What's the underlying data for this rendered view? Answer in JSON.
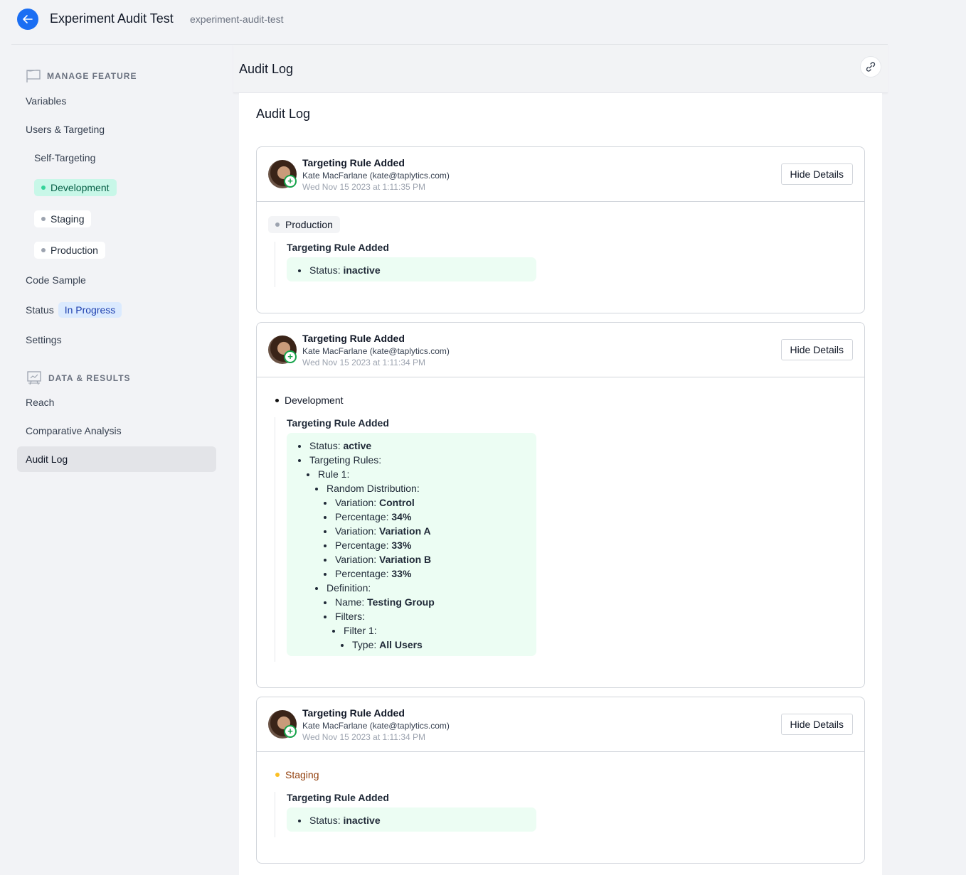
{
  "header": {
    "title": "Experiment Audit Test",
    "slug": "experiment-audit-test"
  },
  "sidebar": {
    "manage_feature": "MANAGE FEATURE",
    "variables": "Variables",
    "users_targeting": "Users & Targeting",
    "self_targeting": "Self-Targeting",
    "envs": [
      "Development",
      "Staging",
      "Production"
    ],
    "code_sample": "Code Sample",
    "status_label": "Status",
    "status_value": "In Progress",
    "settings": "Settings",
    "data_results": "DATA & RESULTS",
    "reach": "Reach",
    "comparative": "Comparative Analysis",
    "audit_log": "Audit Log"
  },
  "main": {
    "header_title": "Audit Log",
    "panel_title": "Audit Log"
  },
  "colors": {
    "accent": "#1b6ef3",
    "development": "#34d399",
    "staging": "#fbbf24",
    "change_bg": "#ecfdf3"
  },
  "entries": [
    {
      "title": "Targeting Rule Added",
      "user": "Kate MacFarlane (kate@taplytics.com)",
      "date": "Wed Nov 15 2023 at 1:11:35 PM",
      "button": "Hide Details",
      "env": "Production",
      "env_kind": "prod",
      "change": "Targeting Rule Added",
      "items": [
        {
          "k": "Status: ",
          "v": "inactive"
        }
      ]
    },
    {
      "title": "Targeting Rule Added",
      "user": "Kate MacFarlane (kate@taplytics.com)",
      "date": "Wed Nov 15 2023 at 1:11:34 PM",
      "button": "Hide Details",
      "env": "Development",
      "env_kind": "dev",
      "change": "Targeting Rule Added",
      "items": [
        {
          "k": "Status: ",
          "v": "active"
        },
        {
          "k": "Targeting Rules:",
          "c": [
            {
              "k": "Rule 1:",
              "c": [
                {
                  "k": "Random Distribution:",
                  "c": [
                    {
                      "k": "Variation: ",
                      "v": "Control"
                    },
                    {
                      "k": "Percentage: ",
                      "v": "34%"
                    },
                    {
                      "k": "Variation: ",
                      "v": "Variation A"
                    },
                    {
                      "k": "Percentage: ",
                      "v": "33%"
                    },
                    {
                      "k": "Variation: ",
                      "v": "Variation B"
                    },
                    {
                      "k": "Percentage: ",
                      "v": "33%"
                    }
                  ]
                },
                {
                  "k": "Definition:",
                  "c": [
                    {
                      "k": "Name: ",
                      "v": "Testing Group"
                    },
                    {
                      "k": "Filters:",
                      "c": [
                        {
                          "k": "Filter 1:",
                          "c": [
                            {
                              "k": "Type: ",
                              "v": "All Users"
                            }
                          ]
                        }
                      ]
                    }
                  ]
                }
              ]
            }
          ]
        }
      ]
    },
    {
      "title": "Targeting Rule Added",
      "user": "Kate MacFarlane (kate@taplytics.com)",
      "date": "Wed Nov 15 2023 at 1:11:34 PM",
      "button": "Hide Details",
      "env": "Staging",
      "env_kind": "stg",
      "change": "Targeting Rule Added",
      "items": [
        {
          "k": "Status: ",
          "v": "inactive"
        }
      ]
    }
  ]
}
